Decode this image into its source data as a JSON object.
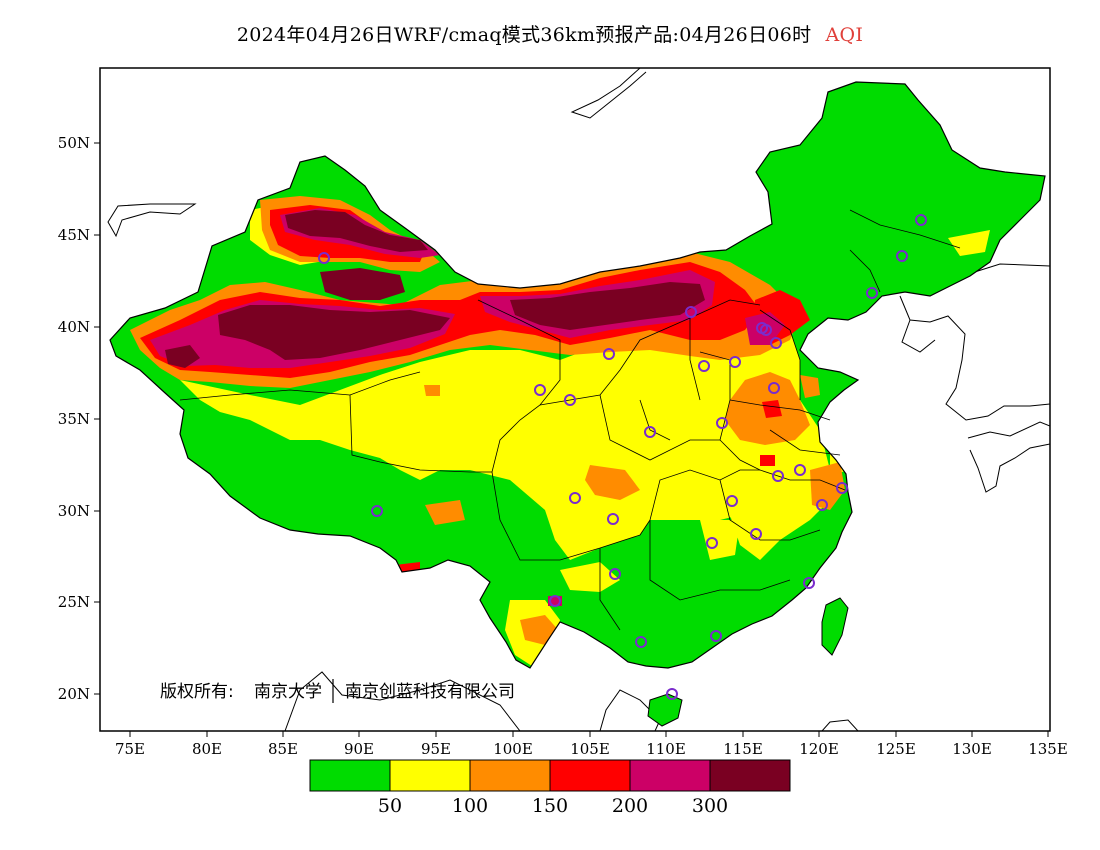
{
  "title": {
    "main": "2024年04月26日WRF/cmaq模式36km预报产品:04月26日06时",
    "variable": "AQI",
    "variable_color": "#e0403a"
  },
  "axes": {
    "lon_ticks": [
      "75E",
      "80E",
      "85E",
      "90E",
      "95E",
      "100E",
      "105E",
      "110E",
      "115E",
      "120E",
      "125E",
      "130E",
      "135E"
    ],
    "lat_ticks": [
      "50N",
      "45N",
      "40N",
      "35N",
      "30N",
      "25N",
      "20N"
    ]
  },
  "copyright": {
    "prefix": "版权所有:",
    "org1": "南京大学",
    "org2": "南京创蓝科技有限公司"
  },
  "legend": {
    "colors": [
      "#00dc00",
      "#ffff00",
      "#ff8c00",
      "#ff0000",
      "#cc0066",
      "#7a0022"
    ],
    "labels": [
      "50",
      "100",
      "150",
      "200",
      "300"
    ]
  },
  "stations_color": "#7a2ccc"
}
